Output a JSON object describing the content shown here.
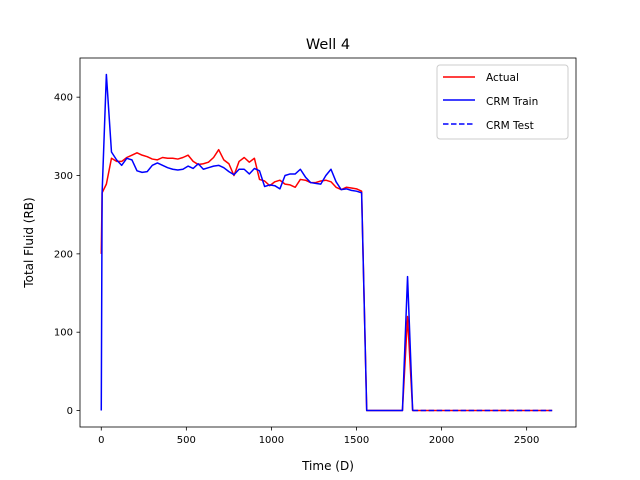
{
  "chart_data": {
    "type": "line",
    "title": "Well 4",
    "xlabel": "Time (D)",
    "ylabel": "Total Fluid (RB)",
    "xlim": [
      -125,
      2790
    ],
    "ylim": [
      -21,
      450
    ],
    "xticks": [
      0,
      500,
      1000,
      1500,
      2000,
      2500
    ],
    "yticks": [
      0,
      100,
      200,
      300,
      400
    ],
    "grid": false,
    "legend_position": "top-right",
    "series": [
      {
        "name": "Actual",
        "color": "#ff0000",
        "style": "solid",
        "x": [
          0,
          5,
          30,
          60,
          90,
          120,
          150,
          180,
          210,
          240,
          270,
          300,
          330,
          360,
          390,
          420,
          450,
          480,
          510,
          540,
          570,
          600,
          630,
          660,
          690,
          720,
          750,
          780,
          810,
          840,
          870,
          900,
          930,
          960,
          990,
          1020,
          1050,
          1080,
          1110,
          1140,
          1170,
          1200,
          1230,
          1260,
          1290,
          1320,
          1350,
          1380,
          1410,
          1440,
          1470,
          1500,
          1530,
          1560,
          1590,
          1620,
          1650,
          1680,
          1710,
          1740,
          1770,
          1800,
          1830,
          1860,
          2000,
          2200,
          2400,
          2650
        ],
        "y": [
          200,
          278,
          289,
          322,
          318,
          318,
          323,
          326,
          329,
          326,
          324,
          321,
          320,
          323,
          322,
          322,
          321,
          323,
          326,
          318,
          314,
          315,
          317,
          323,
          333,
          320,
          315,
          300,
          318,
          323,
          317,
          322,
          295,
          293,
          287,
          292,
          294,
          289,
          288,
          285,
          295,
          294,
          291,
          291,
          293,
          294,
          292,
          285,
          282,
          285,
          284,
          283,
          280,
          0,
          0,
          0,
          0,
          0,
          0,
          0,
          0,
          120,
          0,
          0,
          0,
          0,
          0,
          0
        ]
      },
      {
        "name": "CRM Train",
        "color": "#0000ff",
        "style": "solid",
        "x": [
          0,
          5,
          30,
          60,
          90,
          120,
          150,
          180,
          210,
          240,
          270,
          300,
          330,
          360,
          390,
          420,
          450,
          480,
          510,
          540,
          570,
          600,
          630,
          660,
          690,
          720,
          750,
          780,
          810,
          840,
          870,
          900,
          930,
          960,
          990,
          1020,
          1050,
          1080,
          1110,
          1140,
          1170,
          1200,
          1230,
          1260,
          1290,
          1320,
          1350,
          1380,
          1410,
          1440,
          1470,
          1500,
          1530,
          1560,
          1590,
          1620,
          1650,
          1680,
          1710,
          1740,
          1770,
          1800,
          1830
        ],
        "y": [
          0,
          278,
          429,
          330,
          320,
          313,
          322,
          320,
          306,
          304,
          305,
          313,
          316,
          313,
          310,
          308,
          307,
          308,
          312,
          309,
          315,
          308,
          310,
          312,
          313,
          310,
          305,
          301,
          308,
          308,
          302,
          309,
          306,
          286,
          288,
          287,
          283,
          300,
          302,
          302,
          308,
          298,
          291,
          290,
          289,
          300,
          308,
          292,
          282,
          283,
          281,
          280,
          278,
          0,
          0,
          0,
          0,
          0,
          0,
          0,
          0,
          171,
          0
        ]
      },
      {
        "name": "CRM Test",
        "color": "#0000ff",
        "style": "dashed",
        "x": [
          1830,
          1900,
          2000,
          2100,
          2200,
          2300,
          2400,
          2500,
          2650
        ],
        "y": [
          0,
          0,
          0,
          0,
          0,
          0,
          0,
          0,
          0
        ]
      }
    ]
  }
}
